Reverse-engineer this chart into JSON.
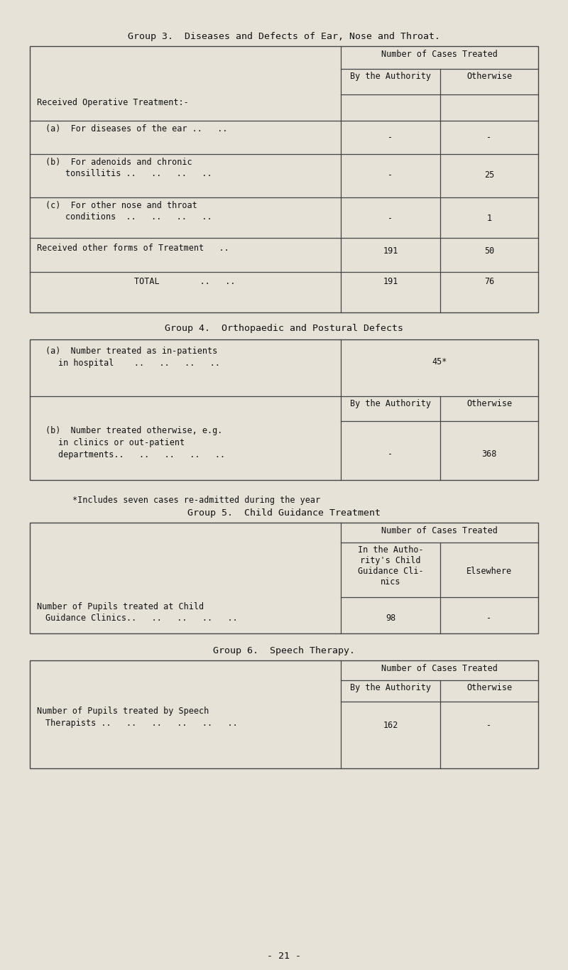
{
  "bg_color": "#e6e2d8",
  "text_color": "#1a1a1a",
  "page_title": "Group 3.  Diseases and Defects of Ear, Nose and Throat.",
  "group3_header": "Number of Cases Treated",
  "group3_col1": "By the Authority",
  "group3_col2": "Otherwise",
  "group4_title": "Group 4.  Orthopaedic and Postural Defects",
  "group4_col1": "By the Authority",
  "group4_col2": "Otherwise",
  "group4_row_a_val": "45*",
  "group4_footnote": "*Includes seven cases re-admitted during the year",
  "group5_title": "Group 5.  Child Guidance Treatment",
  "group5_header": "Number of Cases Treated",
  "group5_col1a": "In the Autho-",
  "group5_col1b": "rity's Child",
  "group5_col1c": "Guidance Cli-",
  "group5_col1d": "nics",
  "group5_col2": "Elsewhere",
  "group6_title": "Group 6.  Speech Therapy.",
  "group6_header": "Number of Cases Treated",
  "group6_col1": "By the Authority",
  "group6_col2": "Otherwise",
  "page_number": "- 21 -"
}
